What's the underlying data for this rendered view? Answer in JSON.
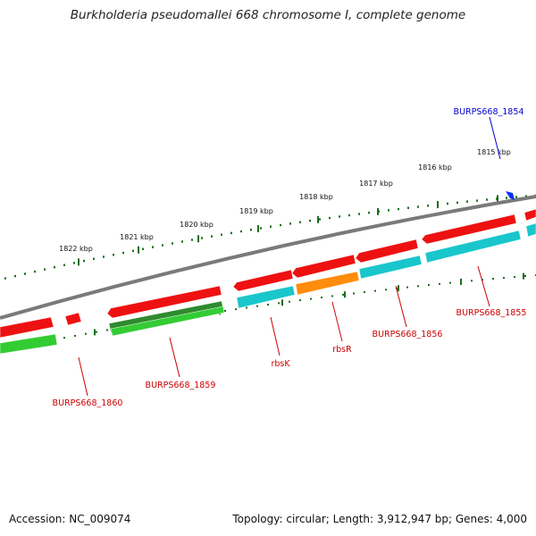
{
  "title": "Burkholderia pseudomallei 668 chromosome I, complete genome",
  "footer": {
    "accession": "Accession: NC_009074",
    "topology": "Topology: circular; Length: 3,912,947 bp; Genes: 4,000"
  },
  "colors": {
    "backbone": "#7a7a7a",
    "tick": "#1a6e1a",
    "gene_red": "#ee1111",
    "gene_cyan": "#19c6cc",
    "gene_orange": "#ff8c0a",
    "gene_green_dark": "#2e8b2e",
    "gene_green_light": "#33cc33",
    "label_red": "#cc0000",
    "label_blue": "#0000cc",
    "marker_blue": "#0033ff"
  },
  "scale_labels": [
    {
      "name": "1815 kbp",
      "text": "1815 kbp"
    },
    {
      "name": "1816 kbp",
      "text": "1816 kbp"
    },
    {
      "name": "1817 kbp",
      "text": "1817 kbp"
    },
    {
      "name": "1818 kbp",
      "text": "1818 kbp"
    },
    {
      "name": "1819 kbp",
      "text": "1819 kbp"
    },
    {
      "name": "1820 kbp",
      "text": "1820 kbp"
    },
    {
      "name": "1821 kbp",
      "text": "1821 kbp"
    },
    {
      "name": "1822 kbp",
      "text": "1822 kbp"
    }
  ],
  "gene_labels": [
    {
      "id": "BURPS668_1854",
      "text": "BURPS668_1854",
      "color": "blue"
    },
    {
      "id": "BURPS668_1855",
      "text": "BURPS668_1855",
      "color": "red"
    },
    {
      "id": "BURPS668_1856",
      "text": "BURPS668_1856",
      "color": "red"
    },
    {
      "id": "rbsR",
      "text": "rbsR",
      "color": "red"
    },
    {
      "id": "rbsK",
      "text": "rbsK",
      "color": "red"
    },
    {
      "id": "BURPS668_1859",
      "text": "BURPS668_1859",
      "color": "red"
    },
    {
      "id": "BURPS668_1860",
      "text": "BURPS668_1860",
      "color": "red"
    }
  ]
}
